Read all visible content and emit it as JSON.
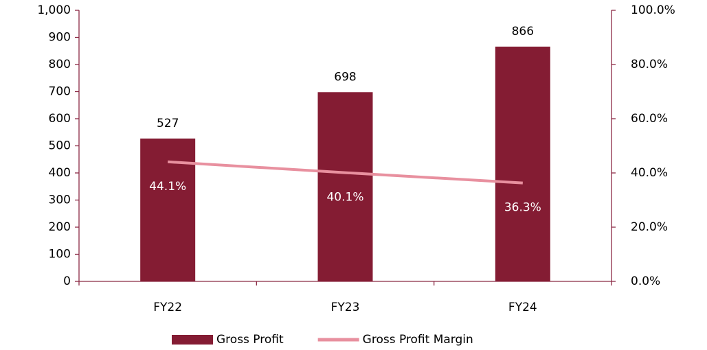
{
  "chart_data": {
    "type": "bar",
    "categories": [
      "FY22",
      "FY23",
      "FY24"
    ],
    "series": [
      {
        "name": "Gross Profit",
        "type": "bar",
        "color": "#841c33",
        "values": [
          527,
          698,
          866
        ]
      },
      {
        "name": "Gross Profit Margin",
        "type": "line",
        "axis": "y2",
        "color": "#e8909f",
        "values": [
          44.1,
          40.1,
          36.3
        ],
        "value_labels": [
          "44.1%",
          "40.1%",
          "36.3%"
        ]
      }
    ],
    "ylim": [
      0,
      1000
    ],
    "yticks": [
      0,
      100,
      200,
      300,
      400,
      500,
      600,
      700,
      800,
      900,
      {
        "value": 1000,
        "label": "1,000"
      }
    ],
    "y2lim": [
      0,
      100
    ],
    "y2ticks": [
      {
        "value": 0,
        "label": "0.0%"
      },
      {
        "value": 20,
        "label": "20.0%"
      },
      {
        "value": 40,
        "label": "40.0%"
      },
      {
        "value": 60,
        "label": "60.0%"
      },
      {
        "value": 80,
        "label": "80.0%"
      },
      {
        "value": 100,
        "label": "100.0%"
      }
    ],
    "legend": "bottom"
  }
}
